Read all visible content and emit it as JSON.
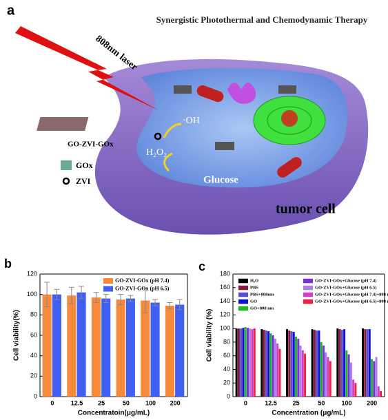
{
  "illustration": {
    "panel_label": "a",
    "title": "Synergistic Photothermal and Chemodynamic Therapy",
    "laser": "808nm laser",
    "nanosheet": "GO-ZVI-GOx",
    "hydroxyl": "·OH",
    "peroxide": "H₂O₂",
    "glucose": "Glucose",
    "gox_legend": "GOx",
    "zvi_legend": "ZVI",
    "cell": "tumor cell"
  },
  "chart_data": [
    {
      "type": "bar",
      "panel_label": "b",
      "y_label": "Cell viability(%)",
      "x_label": "Concentratoin(μg/mL)",
      "categories": [
        "0",
        "12.5",
        "25",
        "50",
        "100",
        "200"
      ],
      "series": [
        {
          "name": "GO-ZVI-GOx (pH 7.4)",
          "color": "#f7893a",
          "values": [
            100,
            99,
            97,
            95,
            94,
            89
          ],
          "errors": [
            12,
            8,
            5,
            5,
            12,
            3
          ]
        },
        {
          "name": "GO-ZVI-GOx (pH 6.5)",
          "color": "#3f5ff0",
          "values": [
            100,
            102,
            96,
            96,
            92,
            90
          ],
          "errors": [
            5,
            6,
            4,
            3,
            3,
            5
          ]
        }
      ],
      "ylim": [
        0,
        120
      ],
      "yticks": [
        0,
        20,
        40,
        60,
        80,
        100,
        120
      ]
    },
    {
      "type": "bar",
      "panel_label": "c",
      "y_label": "Cell viability (%)",
      "x_label": "Concentration (μg/mL)",
      "categories": [
        "0",
        "12.5",
        "25",
        "50",
        "100",
        "200"
      ],
      "series": [
        {
          "name": "H₂O",
          "color": "#000000",
          "values": [
            100,
            99,
            99,
            99,
            100,
            100
          ]
        },
        {
          "name": "PBS",
          "color": "#8b1a3a",
          "values": [
            100,
            98,
            97,
            98,
            99,
            99
          ]
        },
        {
          "name": "PBS+808nm",
          "color": "#5a4fd0",
          "values": [
            100,
            97,
            96,
            97,
            98,
            99
          ]
        },
        {
          "name": "GO",
          "color": "#1010d8",
          "values": [
            101,
            96,
            95,
            97,
            99,
            99
          ]
        },
        {
          "name": "GO+808 nm",
          "color": "#22b822",
          "values": [
            102,
            93,
            88,
            80,
            68,
            55
          ]
        },
        {
          "name": "GO-ZVI-GOx+Glucose (pH 7.4)",
          "color": "#7a2ee0",
          "values": [
            101,
            90,
            85,
            75,
            62,
            52
          ]
        },
        {
          "name": "GO-ZVI-GOx+Glucose (pH 6.5)",
          "color": "#b07ae8",
          "values": [
            100,
            85,
            75,
            65,
            50,
            58
          ]
        },
        {
          "name": "GO-ZVI-GOx+Glucose (pH 7.4)+808 nm",
          "color": "#d040c8",
          "values": [
            99,
            78,
            68,
            58,
            25,
            15
          ]
        },
        {
          "name": "GO-ZVI-GOx+Glucose (pH 6.5)+808 nm",
          "color": "#f02040",
          "values": [
            100,
            70,
            63,
            52,
            20,
            8
          ]
        }
      ],
      "ylim": [
        0,
        180
      ],
      "yticks": [
        0,
        20,
        40,
        60,
        80,
        100,
        120,
        140,
        160,
        180
      ]
    }
  ]
}
